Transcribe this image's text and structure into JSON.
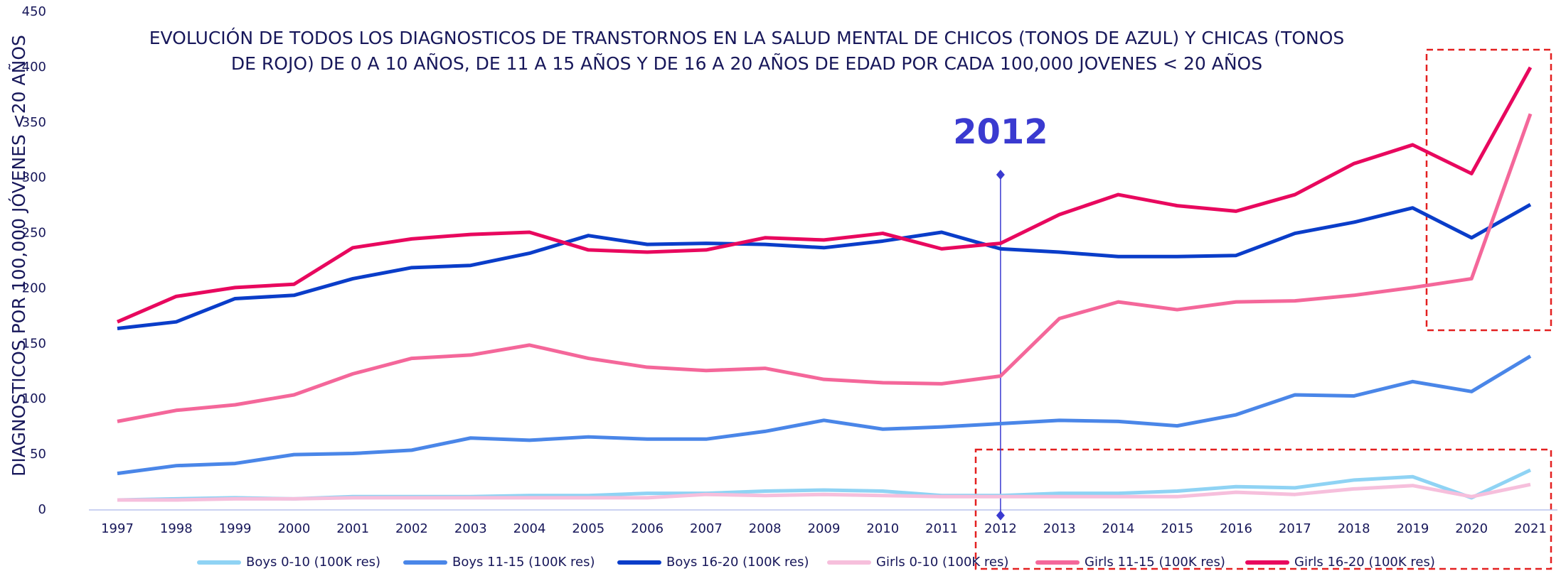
{
  "chart_data": {
    "type": "line",
    "title": "EVOLUCIÓN DE TODOS LOS DIAGNOSTICOS DE TRANSTORNOS EN LA SALUD MENTAL DE CHICOS (TONOS DE AZUL) Y CHICAS (TONOS DE ROJO) DE 0 A 10 AÑOS, DE 11 A 15 AÑOS Y DE 16 A 20 AÑOS DE EDAD POR CADA 100,000 JOVENES < 20 AÑOS",
    "y_label": "DIAGNOSTICOS POR 100,000 JÓVENES <20 AÑOS",
    "annotation": {
      "text": "2012",
      "x": "2012"
    },
    "categories": [
      "1997",
      "1998",
      "1999",
      "2000",
      "2001",
      "2002",
      "2003",
      "2004",
      "2005",
      "2006",
      "2007",
      "2008",
      "2009",
      "2010",
      "2011",
      "2012",
      "2013",
      "2014",
      "2015",
      "2016",
      "2017",
      "2018",
      "2019",
      "2020",
      "2021"
    ],
    "series": [
      {
        "name": "Boys 0-10 (100K res)",
        "color": "#8fd3f4",
        "values": [
          9,
          10,
          11,
          10,
          12,
          12,
          12,
          13,
          13,
          15,
          15,
          17,
          18,
          17,
          13,
          13,
          15,
          15,
          17,
          21,
          20,
          27,
          30,
          11,
          36
        ]
      },
      {
        "name": "Boys 11-15 (100K res)",
        "color": "#4a86e8",
        "values": [
          33,
          40,
          42,
          50,
          51,
          54,
          65,
          63,
          66,
          64,
          64,
          71,
          81,
          73,
          75,
          78,
          81,
          80,
          76,
          86,
          104,
          103,
          116,
          107,
          139
        ]
      },
      {
        "name": "Boys 16-20 (100K res)",
        "color": "#0a3dc9",
        "values": [
          164,
          170,
          191,
          194,
          209,
          219,
          221,
          232,
          248,
          240,
          241,
          240,
          237,
          243,
          251,
          236,
          233,
          229,
          229,
          230,
          250,
          260,
          273,
          246,
          276
        ]
      },
      {
        "name": "Girls 0-10 (100K res)",
        "color": "#f6bfdc",
        "values": [
          9,
          9,
          10,
          10,
          11,
          11,
          11,
          11,
          11,
          11,
          14,
          13,
          14,
          13,
          12,
          12,
          12,
          12,
          12,
          16,
          14,
          19,
          22,
          12,
          23
        ]
      },
      {
        "name": "Girls 11-15 (100K res)",
        "color": "#f4679a",
        "values": [
          80,
          90,
          95,
          104,
          123,
          137,
          140,
          149,
          137,
          129,
          126,
          128,
          118,
          115,
          114,
          121,
          173,
          188,
          181,
          188,
          189,
          194,
          201,
          209,
          358
        ]
      },
      {
        "name": "Girls 16-20 (100K res)",
        "color": "#e8085e",
        "values": [
          170,
          193,
          201,
          204,
          237,
          245,
          249,
          251,
          235,
          233,
          235,
          246,
          244,
          250,
          236,
          241,
          267,
          285,
          275,
          270,
          285,
          313,
          330,
          304,
          400
        ]
      }
    ],
    "ylim": [
      0,
      450
    ],
    "yticks": [
      0,
      50,
      100,
      150,
      200,
      250,
      300,
      350,
      400,
      450
    ],
    "grid": false,
    "legend": "bottom"
  }
}
